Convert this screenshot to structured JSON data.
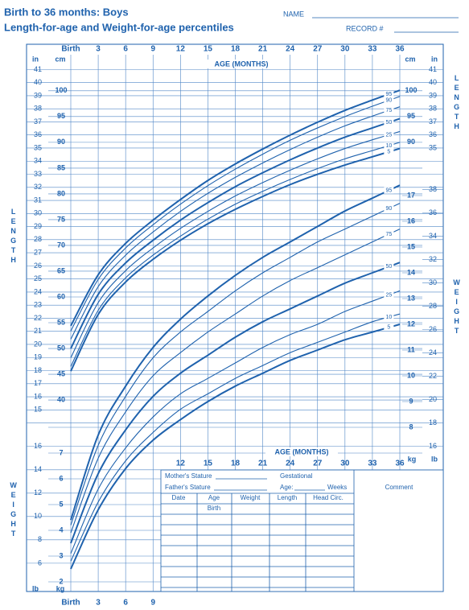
{
  "chart_data": [
    {
      "type": "line",
      "title": "Birth to 36 months: Boys",
      "subtitle": "Length-for-age and Weight-for-age percentiles",
      "axis_label": "LENGTH",
      "x_label": "AGE (MONTHS)",
      "y_unit": "cm",
      "y2_unit": "in",
      "x": [
        0,
        3,
        6,
        9,
        12,
        15,
        18,
        21,
        24,
        27,
        30,
        33,
        36
      ],
      "xlim": [
        0,
        36
      ],
      "xticks": [
        {
          "value": 0,
          "label": "Birth"
        },
        3,
        6,
        9,
        12,
        15,
        18,
        21,
        24,
        27,
        30,
        33,
        36
      ],
      "ylim": [
        37.2,
        107
      ],
      "yticks": [
        40,
        45,
        50,
        55,
        60,
        65,
        70,
        75,
        80,
        85,
        90,
        95,
        100
      ],
      "y2lim": [
        14.65,
        42.13
      ],
      "y2ticks": [
        15,
        16,
        17,
        18,
        19,
        20,
        21,
        22,
        23,
        24,
        25,
        26,
        27,
        28,
        29,
        30,
        31,
        32,
        33,
        34,
        35,
        36,
        37,
        38,
        39,
        40,
        41
      ],
      "grid": true,
      "series": [
        {
          "name": "5",
          "color": "#1f62ad",
          "values": [
            45.6,
            56.6,
            62.9,
            67.3,
            71.0,
            74.2,
            77.0,
            79.5,
            81.8,
            83.8,
            85.6,
            87.2,
            88.8
          ]
        },
        {
          "name": "10",
          "color": "#1f62ad",
          "values": [
            46.5,
            57.4,
            63.7,
            68.1,
            71.8,
            75.1,
            78.0,
            80.5,
            82.8,
            84.9,
            86.8,
            88.4,
            90.0
          ]
        },
        {
          "name": "25",
          "color": "#1f62ad",
          "values": [
            48.2,
            58.9,
            65.1,
            69.5,
            73.3,
            76.6,
            79.6,
            82.2,
            84.6,
            86.8,
            88.8,
            90.5,
            92.1
          ]
        },
        {
          "name": "50",
          "color": "#1f62ad",
          "values": [
            50.0,
            60.5,
            66.6,
            71.0,
            74.9,
            78.3,
            81.4,
            84.1,
            86.6,
            88.9,
            91.0,
            92.8,
            94.6
          ]
        },
        {
          "name": "75",
          "color": "#1f62ad",
          "values": [
            51.8,
            62.0,
            68.1,
            72.6,
            76.6,
            80.1,
            83.2,
            86.0,
            88.6,
            91.0,
            93.2,
            95.1,
            96.9
          ]
        },
        {
          "name": "90",
          "color": "#1f62ad",
          "values": [
            53.4,
            63.4,
            69.5,
            74.0,
            78.0,
            81.6,
            84.8,
            87.7,
            90.4,
            92.8,
            95.0,
            97.0,
            98.9
          ]
        },
        {
          "name": "95",
          "color": "#1f62ad",
          "values": [
            54.4,
            64.3,
            70.4,
            74.9,
            78.9,
            82.6,
            85.8,
            88.7,
            91.4,
            93.9,
            96.2,
            98.2,
            100.1
          ]
        }
      ]
    },
    {
      "type": "line",
      "axis_label": "WEIGHT",
      "x_label": "AGE (MONTHS)",
      "y_unit": "kg",
      "y2_unit": "lb",
      "x": [
        0,
        3,
        6,
        9,
        12,
        15,
        18,
        21,
        24,
        27,
        30,
        33,
        36
      ],
      "xlim": [
        0,
        36
      ],
      "xticks": [
        {
          "value": 0,
          "label": "Birth"
        },
        3,
        6,
        9,
        12,
        15,
        18,
        21,
        24,
        27,
        30,
        33,
        36
      ],
      "ylim": [
        1.625,
        17.875
      ],
      "yticks": [
        2,
        3,
        4,
        5,
        6,
        7,
        8,
        9,
        10,
        11,
        12,
        13,
        14,
        15,
        16,
        17
      ],
      "y2lim": [
        3.58,
        39.41
      ],
      "y2ticks": [
        6,
        8,
        10,
        12,
        14,
        16,
        18,
        20,
        22,
        24,
        26,
        28,
        30,
        32,
        34,
        36,
        38
      ],
      "grid": true,
      "series": [
        {
          "name": "5",
          "color": "#1f62ad",
          "values": [
            2.5,
            4.8,
            6.4,
            7.5,
            8.3,
            9.0,
            9.6,
            10.1,
            10.6,
            11.0,
            11.4,
            11.7,
            12.0
          ]
        },
        {
          "name": "10",
          "color": "#1f62ad",
          "values": [
            2.8,
            5.1,
            6.7,
            7.8,
            8.7,
            9.3,
            9.9,
            10.4,
            10.9,
            11.3,
            11.7,
            12.1,
            12.4
          ]
        },
        {
          "name": "25",
          "color": "#1f62ad",
          "values": [
            3.1,
            5.6,
            7.2,
            8.4,
            9.3,
            9.9,
            10.5,
            11.1,
            11.6,
            12.0,
            12.5,
            12.9,
            13.3
          ]
        },
        {
          "name": "50",
          "color": "#1f62ad",
          "values": [
            3.5,
            6.2,
            7.9,
            9.2,
            10.1,
            10.8,
            11.5,
            12.1,
            12.6,
            13.1,
            13.6,
            14.0,
            14.4
          ]
        },
        {
          "name": "75",
          "color": "#1f62ad",
          "values": [
            3.9,
            6.8,
            8.6,
            10.0,
            10.9,
            11.7,
            12.4,
            13.1,
            13.7,
            14.2,
            14.7,
            15.2,
            15.7
          ]
        },
        {
          "name": "90",
          "color": "#1f62ad",
          "values": [
            4.2,
            7.3,
            9.2,
            10.7,
            11.7,
            12.5,
            13.3,
            14.0,
            14.6,
            15.2,
            15.7,
            16.2,
            16.7
          ]
        },
        {
          "name": "95",
          "color": "#1f62ad",
          "values": [
            4.4,
            7.7,
            9.6,
            11.1,
            12.2,
            13.1,
            13.9,
            14.6,
            15.2,
            15.8,
            16.4,
            16.9,
            17.4
          ]
        }
      ]
    }
  ],
  "header": {
    "name": "NAME",
    "record": "RECORD #"
  },
  "form": {
    "mothers_stature": "Mother's Stature",
    "gestational": "Gestational",
    "fathers_stature": "Father's Stature",
    "age": "Age:",
    "weeks": "Weeks",
    "comment": "Comment",
    "columns": [
      "Date",
      "Age",
      "Weight",
      "Length",
      "Head Circ."
    ],
    "first_row": "Birth"
  }
}
